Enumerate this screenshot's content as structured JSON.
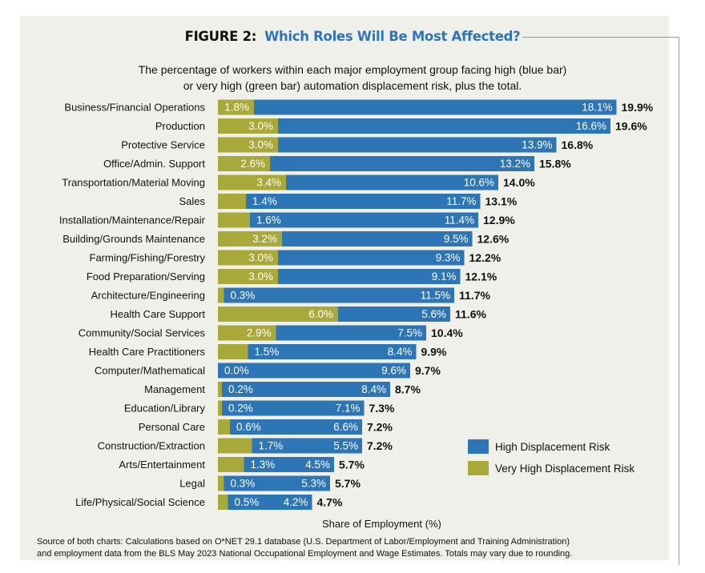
{
  "figure": {
    "label": "FIGURE 2:",
    "title": "Which Roles Will Be Most Affected?",
    "subtitle_line1": "The percentage of workers within each major employment group facing high (blue bar)",
    "subtitle_line2": "or very high (green bar) automation displacement risk, plus the total.",
    "source_line1": "Source of both charts: Calculations based on O*NET 29.1 database (U.S. Department of Labor/Employment and Training Administration)",
    "source_line2": "and employment data from the BLS May 2023 National Occupational Employment and Wage Estimates. Totals may vary due to rounding."
  },
  "chart_data": {
    "type": "bar",
    "orientation": "horizontal",
    "stacked": true,
    "xlabel": "Share of Employment (%)",
    "ylabel": "",
    "legend_position": "bottom-right",
    "grid": false,
    "colors": {
      "very_high": "#a9a93b",
      "high": "#2e75b6"
    },
    "categories": [
      "Business/Financial Operations",
      "Production",
      "Protective Service",
      "Office/Admin. Support",
      "Transportation/Material Moving",
      "Sales",
      "Installation/Maintenance/Repair",
      "Building/Grounds Maintenance",
      "Farming/Fishing/Forestry",
      "Food Preparation/Serving",
      "Architecture/Engineering",
      "Health Care Support",
      "Community/Social Services",
      "Health Care Practitioners",
      "Computer/Mathematical",
      "Management",
      "Education/Library",
      "Personal Care",
      "Construction/Extraction",
      "Arts/Entertainment",
      "Legal",
      "Life/Physical/Social Science"
    ],
    "series": [
      {
        "name": "Very High Displacement Risk",
        "key": "very_high",
        "values": [
          1.8,
          3.0,
          3.0,
          2.6,
          3.4,
          1.4,
          1.6,
          3.2,
          3.0,
          3.0,
          0.3,
          6.0,
          2.9,
          1.5,
          0.0,
          0.2,
          0.2,
          0.6,
          1.7,
          1.3,
          0.3,
          0.5
        ],
        "labels": [
          "1.8%",
          "3.0%",
          "3.0%",
          "2.6%",
          "3.4%",
          "1.4%",
          "1.6%",
          "3.2%",
          "3.0%",
          "3.0%",
          "0.3%",
          "6.0%",
          "2.9%",
          "1.5%",
          "0.0%",
          "0.2%",
          "0.2%",
          "0.6%",
          "1.7%",
          "1.3%",
          "0.3%",
          "0.5%"
        ]
      },
      {
        "name": "High Displacement Risk",
        "key": "high",
        "values": [
          18.1,
          16.6,
          13.9,
          13.2,
          10.6,
          11.7,
          11.4,
          9.5,
          9.3,
          9.1,
          11.5,
          5.6,
          7.5,
          8.4,
          9.6,
          8.4,
          7.1,
          6.6,
          5.5,
          4.5,
          5.3,
          4.2
        ],
        "labels": [
          "18.1%",
          "16.6%",
          "13.9%",
          "13.2%",
          "10.6%",
          "11.7%",
          "11.4%",
          "9.5%",
          "9.3%",
          "9.1%",
          "11.5%",
          "5.6%",
          "7.5%",
          "8.4%",
          "9.6%",
          "8.4%",
          "7.1%",
          "6.6%",
          "5.5%",
          "4.5%",
          "5.3%",
          "4.2%"
        ]
      }
    ],
    "totals": [
      19.9,
      19.6,
      16.8,
      15.8,
      14.0,
      13.1,
      12.9,
      12.6,
      12.2,
      12.1,
      11.7,
      11.6,
      10.4,
      9.9,
      9.7,
      8.7,
      7.3,
      7.2,
      7.2,
      5.7,
      5.7,
      4.7
    ],
    "total_labels": [
      "19.9%",
      "19.6%",
      "16.8%",
      "15.8%",
      "14.0%",
      "13.1%",
      "12.9%",
      "12.6%",
      "12.2%",
      "12.1%",
      "11.7%",
      "11.6%",
      "10.4%",
      "9.9%",
      "9.7%",
      "8.7%",
      "7.3%",
      "7.2%",
      "7.2%",
      "5.7%",
      "5.7%",
      "4.7%"
    ]
  }
}
